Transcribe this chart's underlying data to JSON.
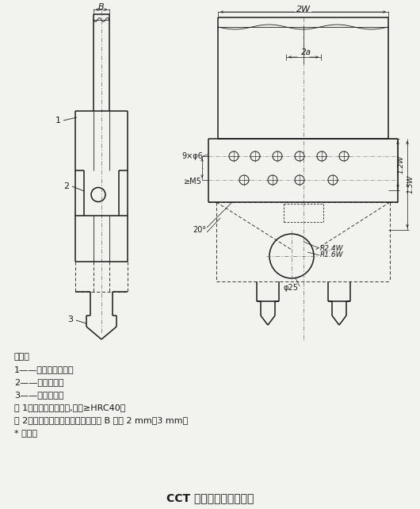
{
  "title": "CCT 试样无后坐夹具示例",
  "bg_color": "#f2f2ee",
  "notes": [
    "说明：",
    "1——侧板的锯齿面；",
    "2——沉头螺栓；",
    "3——锁紧螺母。",
    "注 1：采用硬质钢制作,硬度≥HRC40。",
    "注 2：带锯齿的侧板厚度与试样厚度 B 相差 2 mm～3 mm。",
    "* 钻孔。"
  ],
  "lc": "#1a1a1a"
}
